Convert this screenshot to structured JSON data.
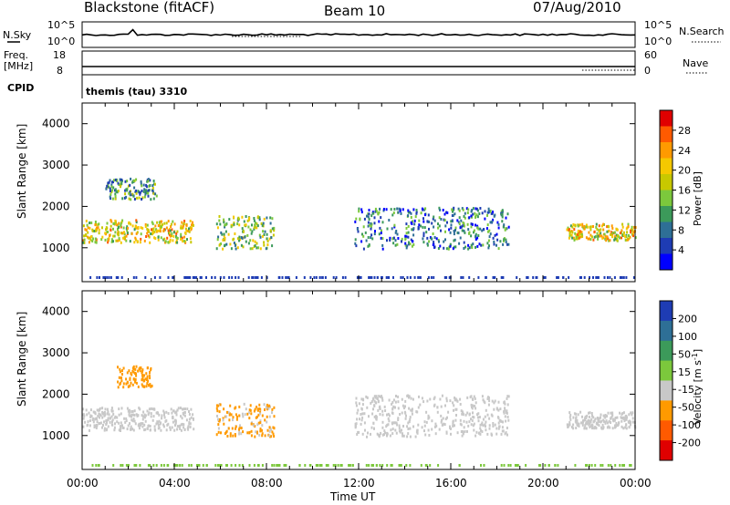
{
  "header": {
    "station": "Blackstone (fitACF)",
    "beam": "Beam 10",
    "date": "07/Aug/2010"
  },
  "strip_panels": {
    "nsky_label": "N.Sky",
    "nsky_ticks": [
      "10^5",
      "10^0"
    ],
    "nsearch_label": "N.Search",
    "nsearch_ticks": [
      "10^5",
      "10^0"
    ],
    "freq_label_1": "Freq.",
    "freq_label_2": "[MHz]",
    "freq_ticks": [
      "18",
      "8"
    ],
    "nave_label": "Nave",
    "nave_ticks": [
      "60",
      "0"
    ],
    "cpid_label": "CPID",
    "cpid_value": "themis (tau) 3310"
  },
  "axes": {
    "xlabel": "Time UT",
    "xticks": [
      "00:00",
      "04:00",
      "08:00",
      "12:00",
      "16:00",
      "20:00",
      "00:00"
    ],
    "ylabel": "Slant Range [km]",
    "yticks": [
      "4000",
      "3000",
      "2000",
      "1000"
    ]
  },
  "colorbars": {
    "power": {
      "label": "Power [dB]",
      "ticks": [
        "28",
        "24",
        "20",
        "16",
        "12",
        "8",
        "4"
      ],
      "colors": [
        "#e00000",
        "#ff5a00",
        "#ff9a00",
        "#f5c800",
        "#c8c800",
        "#7cc83c",
        "#3c9a5a",
        "#2e6f96",
        "#1e3cb4",
        "#0000ff"
      ]
    },
    "velocity": {
      "label": "Velocity [m s",
      "label_exp": "-1",
      "label_end": "]",
      "ticks": [
        "200",
        "100",
        "50",
        "15",
        "-15",
        "-50",
        "-100",
        "-200"
      ],
      "colors": [
        "#1e3cb4",
        "#2e6f96",
        "#3c9a5a",
        "#7cc83c",
        "#c8c8c8",
        "#ff9a00",
        "#ff5a00",
        "#e00000"
      ]
    }
  },
  "chart_data": [
    {
      "type": "line",
      "panel": "N.Sky / N.Search",
      "x_range_hours": [
        0,
        24
      ],
      "note_series": "N.Sky roughly constant near 10^2 with small spikes around 00:40–02:20"
    },
    {
      "type": "line",
      "panel": "Freq. / Nave",
      "x_range_hours": [
        0,
        24
      ],
      "freq_mhz": 10,
      "nave_low": 10
    },
    {
      "type": "heatmap",
      "panel": "Power",
      "xlabel": "Time UT",
      "ylabel": "Slant Range [km]",
      "x_range_hours": [
        0,
        24
      ],
      "ylim": [
        180,
        4500
      ],
      "clim": [
        0,
        30
      ],
      "regions": [
        {
          "t0": 0.0,
          "t1": 4.8,
          "r0": 1150,
          "r1": 1700,
          "level": 18
        },
        {
          "t0": 1.0,
          "t1": 3.2,
          "r0": 2200,
          "r1": 2700,
          "level": 10
        },
        {
          "t0": 5.8,
          "t1": 8.3,
          "r0": 1000,
          "r1": 1800,
          "level": 14
        },
        {
          "t0": 11.8,
          "t1": 18.5,
          "r0": 1000,
          "r1": 2000,
          "level": 8
        },
        {
          "t0": 21.0,
          "t1": 24.0,
          "r0": 1200,
          "r1": 1600,
          "level": 18
        }
      ]
    },
    {
      "type": "heatmap",
      "panel": "Velocity",
      "xlabel": "Time UT",
      "ylabel": "Slant Range [km]",
      "x_range_hours": [
        0,
        24
      ],
      "ylim": [
        180,
        4500
      ],
      "clim": [
        -200,
        200
      ],
      "regions": [
        {
          "t0": 0.0,
          "t1": 4.8,
          "r0": 1150,
          "r1": 1700,
          "velocity": 0
        },
        {
          "t0": 1.5,
          "t1": 3.0,
          "r0": 2200,
          "r1": 2700,
          "velocity": -60
        },
        {
          "t0": 5.8,
          "t1": 8.3,
          "r0": 1000,
          "r1": 1800,
          "velocity": -40
        },
        {
          "t0": 11.8,
          "t1": 18.5,
          "r0": 1000,
          "r1": 2000,
          "velocity": 0
        },
        {
          "t0": 21.0,
          "t1": 24.0,
          "r0": 1200,
          "r1": 1600,
          "velocity": 0
        }
      ]
    }
  ]
}
